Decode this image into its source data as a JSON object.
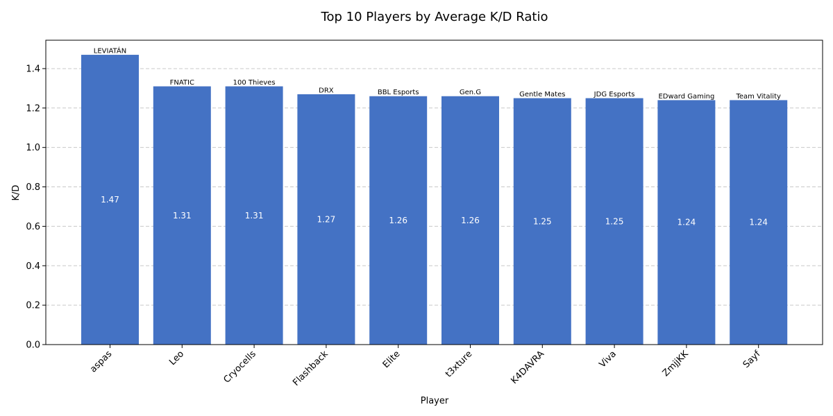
{
  "chart_data": {
    "type": "bar",
    "title": "Top 10 Players by Average K/D Ratio",
    "xlabel": "Player",
    "ylabel": "K/D",
    "categories": [
      "aspas",
      "Leo",
      "Cryocells",
      "Flashback",
      "Elite",
      "t3xture",
      "K4DAVRA",
      "Viva",
      "ZmjjKK",
      "Sayf"
    ],
    "values": [
      1.47,
      1.31,
      1.31,
      1.27,
      1.26,
      1.26,
      1.25,
      1.25,
      1.24,
      1.24
    ],
    "value_labels": [
      "1.47",
      "1.31",
      "1.31",
      "1.27",
      "1.26",
      "1.26",
      "1.25",
      "1.25",
      "1.24",
      "1.24"
    ],
    "teams": [
      "LEVIATÁN",
      "FNATIC",
      "100 Thieves",
      "DRX",
      "BBL Esports",
      "Gen.G",
      "Gentle Mates",
      "JDG Esports",
      "EDward Gaming",
      "Team Vitality"
    ],
    "ylim": [
      0,
      1.544
    ],
    "yticks": [
      0.0,
      0.2,
      0.4,
      0.6,
      0.8,
      1.0,
      1.2,
      1.4
    ],
    "ytick_labels": [
      "0.0",
      "0.2",
      "0.4",
      "0.6",
      "0.8",
      "1.0",
      "1.2",
      "1.4"
    ],
    "grid": "y-dashed",
    "colors": {
      "bar": "#4472c4",
      "grid": "#c8c8c8",
      "axis": "#000000"
    }
  }
}
